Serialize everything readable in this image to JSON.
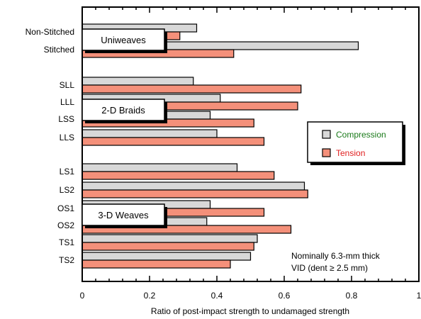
{
  "chart_data": {
    "type": "bar",
    "orientation": "horizontal",
    "xlabel": "Ratio of post-impact strength to undamaged strength",
    "xlim": [
      0,
      1
    ],
    "xticks": [
      "0",
      "0.2",
      "0.4",
      "0.6",
      "0.8",
      "1"
    ],
    "categories": [
      "Non-Stitched",
      "Stitched",
      "SLL",
      "LLL",
      "LSS",
      "LLS",
      "LS1",
      "LS2",
      "OS1",
      "OS2",
      "TS1",
      "TS2"
    ],
    "series": [
      {
        "name": "Compression",
        "color": "#d8d8d8",
        "values": [
          0.34,
          0.82,
          0.33,
          0.41,
          0.38,
          0.4,
          0.46,
          0.66,
          0.38,
          0.37,
          0.52,
          0.5
        ]
      },
      {
        "name": "Tension",
        "color": "#f4907a",
        "values": [
          0.29,
          0.45,
          0.65,
          0.64,
          0.51,
          0.54,
          0.57,
          0.67,
          0.54,
          0.62,
          0.51,
          0.44
        ]
      }
    ],
    "groups": [
      {
        "label": "Uniweaves",
        "categories": [
          "Non-Stitched",
          "Stitched"
        ]
      },
      {
        "label": "2-D Braids",
        "categories": [
          "SLL",
          "LLL",
          "LSS",
          "LLS"
        ]
      },
      {
        "label": "3-D Weaves",
        "categories": [
          "LS1",
          "LS2",
          "OS1",
          "OS2",
          "TS1",
          "TS2"
        ]
      }
    ],
    "legend": {
      "placement": "right",
      "entries": [
        "Compression",
        "Tension"
      ]
    },
    "legend_colors": {
      "Compression": "#1a7a1a",
      "Tension": "#e02020"
    },
    "annotation": [
      "Nominally 6.3-mm thick",
      "VID (dent ≥ 2.5 mm)"
    ]
  }
}
